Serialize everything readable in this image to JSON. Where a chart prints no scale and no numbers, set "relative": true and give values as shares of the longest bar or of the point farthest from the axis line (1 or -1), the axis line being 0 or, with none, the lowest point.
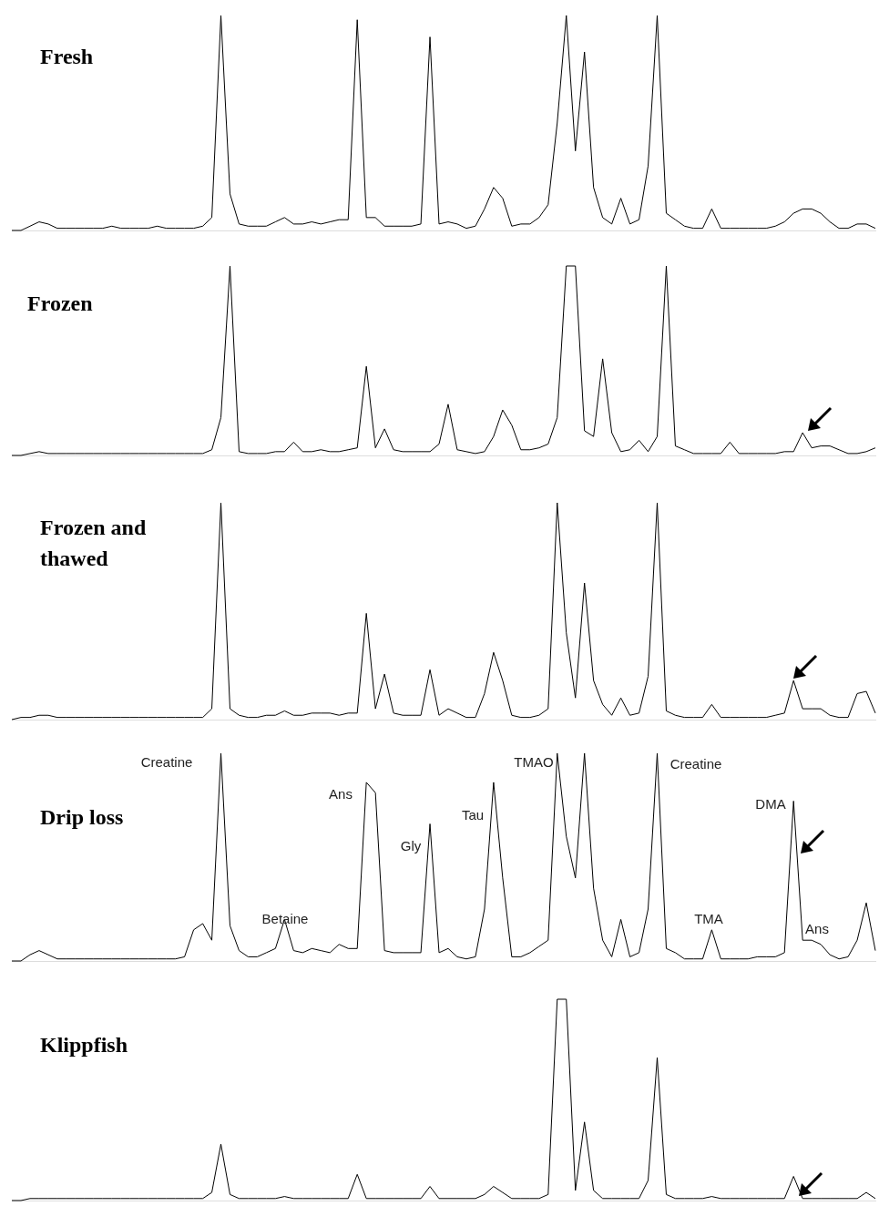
{
  "chart_data": [
    {
      "type": "line",
      "title": "Fresh",
      "relative": true,
      "color": "#000000",
      "categories": [
        null,
        null,
        null,
        null,
        null,
        null,
        null,
        null,
        null,
        null,
        null,
        null,
        null,
        null,
        null,
        null,
        null,
        null,
        null,
        null,
        null,
        null,
        null,
        null,
        null,
        null,
        null,
        null,
        null,
        null,
        null,
        null,
        null,
        null,
        null,
        null,
        null,
        null,
        null,
        null,
        null,
        null,
        null,
        null,
        null,
        null,
        null,
        null,
        null,
        null,
        null,
        null,
        null,
        null,
        null,
        null,
        null,
        null,
        null,
        null,
        null,
        null,
        null,
        null,
        null,
        null,
        null,
        null,
        null,
        null,
        null,
        null,
        null,
        null,
        null,
        null,
        null,
        null,
        null,
        null,
        null,
        null,
        null,
        null,
        null,
        null,
        null,
        null,
        null,
        null,
        null,
        null,
        null,
        null,
        null,
        null
      ],
      "values": [
        0,
        0,
        0.02,
        0.04,
        0.03,
        0.01,
        0.01,
        0.01,
        0.01,
        0.01,
        0.01,
        0.02,
        0.01,
        0.01,
        0.01,
        0.01,
        0.02,
        0.01,
        0.01,
        0.01,
        0.01,
        0.02,
        0.06,
        1,
        0.17,
        0.03,
        0.02,
        0.02,
        0.02,
        0.04,
        0.06,
        0.03,
        0.03,
        0.04,
        0.03,
        0.04,
        0.05,
        0.05,
        0.98,
        0.06,
        0.06,
        0.02,
        0.02,
        0.02,
        0.02,
        0.03,
        0.9,
        0.03,
        0.04,
        0.03,
        0.01,
        0.02,
        0.1,
        0.2,
        0.15,
        0.02,
        0.03,
        0.03,
        0.06,
        0.12,
        0.5,
        1,
        0.37,
        0.83,
        0.2,
        0.06,
        0.03,
        0.15,
        0.03,
        0.05,
        0.3,
        1,
        0.08,
        0.05,
        0.02,
        0.01,
        0.01,
        0.1,
        0.01,
        0.01,
        0.01,
        0.01,
        0.01,
        0.01,
        0.02,
        0.04,
        0.08,
        0.1,
        0.1,
        0.08,
        0.04,
        0.01,
        0.01,
        0.03,
        0.03,
        0.01
      ]
    },
    {
      "type": "line",
      "title": "Frozen",
      "relative": true,
      "color": "#000000",
      "categories": [
        null,
        null,
        null,
        null,
        null,
        null,
        null,
        null,
        null,
        null,
        null,
        null,
        null,
        null,
        null,
        null,
        null,
        null,
        null,
        null,
        null,
        null,
        null,
        null,
        null,
        null,
        null,
        null,
        null,
        null,
        null,
        null,
        null,
        null,
        null,
        null,
        null,
        null,
        null,
        null,
        null,
        null,
        null,
        null,
        null,
        null,
        null,
        null,
        null,
        null,
        null,
        null,
        null,
        null,
        null,
        null,
        null,
        null,
        null,
        null,
        null,
        null,
        null,
        null,
        null,
        null,
        null,
        null,
        null,
        null,
        null,
        null,
        null,
        null,
        null,
        null,
        null,
        null,
        null,
        null,
        null,
        null,
        null,
        null,
        null,
        null,
        null,
        null,
        null,
        null,
        null,
        null,
        null,
        null,
        null,
        null
      ],
      "values": [
        0,
        0,
        0.01,
        0.02,
        0.01,
        0.01,
        0.01,
        0.01,
        0.01,
        0.01,
        0.01,
        0.01,
        0.01,
        0.01,
        0.01,
        0.01,
        0.01,
        0.01,
        0.01,
        0.01,
        0.01,
        0.01,
        0.03,
        0.2,
        1,
        0.02,
        0.01,
        0.01,
        0.01,
        0.02,
        0.02,
        0.07,
        0.02,
        0.02,
        0.03,
        0.02,
        0.02,
        0.03,
        0.04,
        0.47,
        0.04,
        0.14,
        0.03,
        0.02,
        0.02,
        0.02,
        0.02,
        0.06,
        0.27,
        0.03,
        0.02,
        0.01,
        0.02,
        0.1,
        0.24,
        0.16,
        0.03,
        0.03,
        0.04,
        0.06,
        0.2,
        1,
        1,
        0.13,
        0.1,
        0.51,
        0.12,
        0.02,
        0.03,
        0.08,
        0.02,
        0.1,
        1,
        0.05,
        0.03,
        0.01,
        0.01,
        0.01,
        0.01,
        0.07,
        0.01,
        0.01,
        0.01,
        0.01,
        0.01,
        0.02,
        0.02,
        0.12,
        0.04,
        0.05,
        0.05,
        0.03,
        0.01,
        0.01,
        0.02,
        0.04
      ]
    },
    {
      "type": "line",
      "title": "Frozen and thawed",
      "relative": true,
      "color": "#000000",
      "categories": [
        null,
        null,
        null,
        null,
        null,
        null,
        null,
        null,
        null,
        null,
        null,
        null,
        null,
        null,
        null,
        null,
        null,
        null,
        null,
        null,
        null,
        null,
        null,
        null,
        null,
        null,
        null,
        null,
        null,
        null,
        null,
        null,
        null,
        null,
        null,
        null,
        null,
        null,
        null,
        null,
        null,
        null,
        null,
        null,
        null,
        null,
        null,
        null,
        null,
        null,
        null,
        null,
        null,
        null,
        null,
        null,
        null,
        null,
        null,
        null,
        null,
        null,
        null,
        null,
        null,
        null,
        null,
        null,
        null,
        null,
        null,
        null,
        null,
        null,
        null,
        null,
        null,
        null,
        null,
        null,
        null,
        null,
        null,
        null,
        null,
        null,
        null,
        null,
        null,
        null,
        null,
        null,
        null,
        null,
        null,
        null
      ],
      "values": [
        0,
        0.01,
        0.01,
        0.02,
        0.02,
        0.01,
        0.01,
        0.01,
        0.01,
        0.01,
        0.01,
        0.01,
        0.01,
        0.01,
        0.01,
        0.01,
        0.01,
        0.01,
        0.01,
        0.01,
        0.01,
        0.01,
        0.05,
        1,
        0.05,
        0.02,
        0.01,
        0.01,
        0.02,
        0.02,
        0.04,
        0.02,
        0.02,
        0.03,
        0.03,
        0.03,
        0.02,
        0.03,
        0.03,
        0.49,
        0.05,
        0.21,
        0.03,
        0.02,
        0.02,
        0.02,
        0.23,
        0.02,
        0.05,
        0.03,
        0.01,
        0.01,
        0.12,
        0.31,
        0.18,
        0.02,
        0.01,
        0.01,
        0.02,
        0.05,
        1,
        0.4,
        0.1,
        0.63,
        0.18,
        0.07,
        0.02,
        0.1,
        0.02,
        0.03,
        0.2,
        1,
        0.04,
        0.02,
        0.01,
        0.01,
        0.01,
        0.07,
        0.01,
        0.01,
        0.01,
        0.01,
        0.01,
        0.01,
        0.02,
        0.03,
        0.18,
        0.05,
        0.05,
        0.05,
        0.02,
        0.01,
        0.01,
        0.12,
        0.13,
        0.03
      ]
    },
    {
      "type": "line",
      "title": "Drip loss",
      "relative": true,
      "color": "#000000",
      "categories": [
        null,
        null,
        null,
        null,
        null,
        null,
        null,
        null,
        null,
        null,
        null,
        null,
        null,
        null,
        null,
        null,
        null,
        null,
        null,
        null,
        null,
        null,
        null,
        null,
        null,
        null,
        null,
        null,
        null,
        null,
        null,
        null,
        null,
        null,
        null,
        null,
        null,
        null,
        null,
        null,
        null,
        null,
        null,
        null,
        null,
        null,
        null,
        null,
        null,
        null,
        null,
        null,
        null,
        null,
        null,
        null,
        null,
        null,
        null,
        null,
        null,
        null,
        null,
        null,
        null,
        null,
        null,
        null,
        null,
        null,
        null,
        null,
        null,
        null,
        null,
        null,
        null,
        null,
        null,
        null,
        null,
        null,
        null,
        null,
        null,
        null,
        null,
        null,
        null,
        null,
        null,
        null,
        null,
        null,
        null,
        null
      ],
      "values": [
        0,
        0,
        0.03,
        0.05,
        0.03,
        0.01,
        0.01,
        0.01,
        0.01,
        0.01,
        0.01,
        0.01,
        0.01,
        0.01,
        0.01,
        0.01,
        0.01,
        0.01,
        0.01,
        0.02,
        0.15,
        0.18,
        0.1,
        1,
        0.17,
        0.05,
        0.02,
        0.02,
        0.04,
        0.06,
        0.2,
        0.05,
        0.04,
        0.06,
        0.05,
        0.04,
        0.08,
        0.06,
        0.06,
        0.86,
        0.81,
        0.05,
        0.04,
        0.04,
        0.04,
        0.04,
        0.66,
        0.04,
        0.06,
        0.02,
        0.01,
        0.02,
        0.25,
        0.86,
        0.4,
        0.02,
        0.02,
        0.04,
        0.07,
        0.1,
        1,
        0.6,
        0.4,
        1,
        0.35,
        0.1,
        0.02,
        0.2,
        0.02,
        0.04,
        0.25,
        1,
        0.06,
        0.04,
        0.01,
        0.01,
        0.01,
        0.15,
        0.01,
        0.01,
        0.01,
        0.01,
        0.02,
        0.02,
        0.02,
        0.04,
        0.77,
        0.1,
        0.1,
        0.08,
        0.03,
        0.01,
        0.02,
        0.1,
        0.28,
        0.05
      ],
      "annotations": [
        "Creatine",
        "Betaine",
        "Ans",
        "Gly",
        "Tau",
        "TMAO",
        "Creatine",
        "TMA",
        "DMA",
        "Ans"
      ]
    },
    {
      "type": "line",
      "title": "Klippfish",
      "relative": true,
      "color": "#000000",
      "categories": [
        null,
        null,
        null,
        null,
        null,
        null,
        null,
        null,
        null,
        null,
        null,
        null,
        null,
        null,
        null,
        null,
        null,
        null,
        null,
        null,
        null,
        null,
        null,
        null,
        null,
        null,
        null,
        null,
        null,
        null,
        null,
        null,
        null,
        null,
        null,
        null,
        null,
        null,
        null,
        null,
        null,
        null,
        null,
        null,
        null,
        null,
        null,
        null,
        null,
        null,
        null,
        null,
        null,
        null,
        null,
        null,
        null,
        null,
        null,
        null,
        null,
        null,
        null,
        null,
        null,
        null,
        null,
        null,
        null,
        null,
        null,
        null,
        null,
        null,
        null,
        null,
        null,
        null,
        null,
        null,
        null,
        null,
        null,
        null,
        null,
        null,
        null,
        null,
        null,
        null,
        null,
        null,
        null,
        null,
        null,
        null
      ],
      "values": [
        0,
        0,
        0.01,
        0.01,
        0.01,
        0.01,
        0.01,
        0.01,
        0.01,
        0.01,
        0.01,
        0.01,
        0.01,
        0.01,
        0.01,
        0.01,
        0.01,
        0.01,
        0.01,
        0.01,
        0.01,
        0.01,
        0.04,
        0.28,
        0.03,
        0.01,
        0.01,
        0.01,
        0.01,
        0.01,
        0.02,
        0.01,
        0.01,
        0.01,
        0.01,
        0.01,
        0.01,
        0.01,
        0.13,
        0.01,
        0.01,
        0.01,
        0.01,
        0.01,
        0.01,
        0.01,
        0.07,
        0.01,
        0.01,
        0.01,
        0.01,
        0.01,
        0.03,
        0.07,
        0.04,
        0.01,
        0.01,
        0.01,
        0.01,
        0.03,
        1,
        1,
        0.05,
        0.39,
        0.05,
        0.01,
        0.01,
        0.01,
        0.01,
        0.01,
        0.1,
        0.71,
        0.03,
        0.01,
        0.01,
        0.01,
        0.01,
        0.02,
        0.01,
        0.01,
        0.01,
        0.01,
        0.01,
        0.01,
        0.01,
        0.01,
        0.12,
        0.01,
        0.01,
        0.01,
        0.01,
        0.01,
        0.01,
        0.01,
        0.04,
        0.01
      ]
    }
  ]
}
